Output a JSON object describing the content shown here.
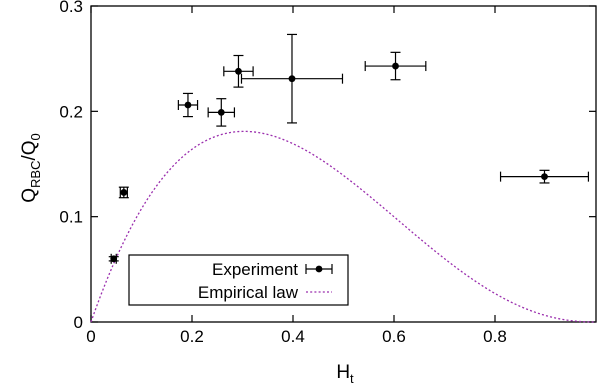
{
  "chart_data": {
    "type": "scatter",
    "xlabel": {
      "main": "H",
      "sub": "t"
    },
    "ylabel": {
      "main": "Q",
      "sub1": "RBC",
      "mid": "/Q",
      "sub2": "0"
    },
    "xlim": [
      0,
      1
    ],
    "ylim": [
      0,
      0.3
    ],
    "x_ticks": [
      0,
      0.2,
      0.4,
      0.6,
      0.8
    ],
    "x_tick_labels": [
      "0",
      "0.2",
      "0.4",
      "0.6",
      "0.8"
    ],
    "y_ticks": [
      0,
      0.1,
      0.2,
      0.3
    ],
    "y_tick_labels": [
      "0",
      "0.1",
      "0.2",
      "0.3"
    ],
    "grid": false,
    "legend_position": "bottom-left",
    "series": [
      {
        "name": "Experiment",
        "style": "points-with-xy-errorbars",
        "color": "#000000",
        "points": [
          {
            "x": 0.045,
            "y": 0.06,
            "xerr": 0.005,
            "yerr": 0.002
          },
          {
            "x": 0.065,
            "y": 0.123,
            "xerr": 0.007,
            "yerr": 0.005
          },
          {
            "x": 0.192,
            "y": 0.206,
            "xerr": 0.019,
            "yerr": 0.011
          },
          {
            "x": 0.258,
            "y": 0.199,
            "xerr": 0.026,
            "yerr": 0.013
          },
          {
            "x": 0.292,
            "y": 0.238,
            "xerr": 0.029,
            "yerr": 0.015
          },
          {
            "x": 0.398,
            "y": 0.231,
            "xerr": 0.1,
            "yerr": 0.042
          },
          {
            "x": 0.603,
            "y": 0.243,
            "xerr": 0.06,
            "yerr": 0.013
          },
          {
            "x": 0.898,
            "y": 0.138,
            "xerr": 0.087,
            "yerr": 0.006
          }
        ]
      },
      {
        "name": "Empirical law",
        "style": "dotted-line",
        "color": "#9b2fae",
        "function": "y = 1.37 * x * (1 - x)^2.3"
      }
    ]
  }
}
